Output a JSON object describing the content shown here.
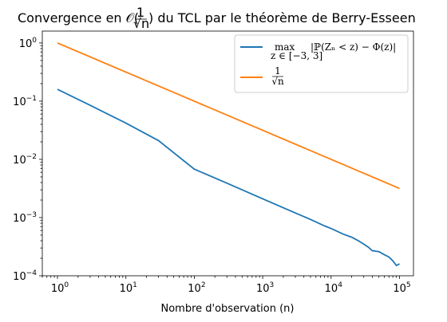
{
  "chart_data": {
    "type": "line",
    "title": "Convergence en 𝒪(1/√n) du TCL par le théorème de Berry-Esseen",
    "title_parts": {
      "prefix": "Convergence en 𝒪(",
      "frac_num": "1",
      "frac_den": "√n",
      "suffix": ") du TCL par le théorème de Berry-Esseen"
    },
    "xlabel": "Nombre d'observation (n)",
    "ylabel": "",
    "x_scale": "log",
    "y_scale": "log",
    "xlim": [
      0.6,
      160000
    ],
    "ylim": [
      0.0001,
      1.6
    ],
    "grid": false,
    "legend_position": "top-right",
    "x_ticks": [
      {
        "value": 1,
        "base": "10",
        "exp": "0"
      },
      {
        "value": 10,
        "base": "10",
        "exp": "1"
      },
      {
        "value": 100,
        "base": "10",
        "exp": "2"
      },
      {
        "value": 1000,
        "base": "10",
        "exp": "3"
      },
      {
        "value": 10000,
        "base": "10",
        "exp": "4"
      },
      {
        "value": 100000,
        "base": "10",
        "exp": "5"
      }
    ],
    "y_ticks": [
      {
        "value": 0.0001,
        "base": "10",
        "exp": "−4"
      },
      {
        "value": 0.001,
        "base": "10",
        "exp": "−3"
      },
      {
        "value": 0.01,
        "base": "10",
        "exp": "−2"
      },
      {
        "value": 0.1,
        "base": "10",
        "exp": "−1"
      },
      {
        "value": 1,
        "base": "10",
        "exp": "0"
      }
    ],
    "series": [
      {
        "name": "max_{z∈[−3,3]} |ℙ(Zₙ < z) − Φ(z)|",
        "legend_main": "max",
        "legend_sub": "z ∈ [−3, 3]",
        "legend_expr": "|ℙ(Zₙ < z) − Φ(z)|",
        "color": "#1f77b4",
        "x": [
          1,
          3,
          10,
          30,
          100,
          300,
          1000,
          3000,
          5000,
          8000,
          10000,
          15000,
          20000,
          25000,
          30000,
          35000,
          40000,
          50000,
          60000,
          70000,
          80000,
          90000,
          100000
        ],
        "values": [
          0.16,
          0.085,
          0.042,
          0.021,
          0.0068,
          0.0039,
          0.0021,
          0.0012,
          0.00093,
          0.00072,
          0.00065,
          0.00052,
          0.00046,
          0.0004,
          0.00035,
          0.00031,
          0.00027,
          0.00026,
          0.00023,
          0.00021,
          0.00018,
          0.00015,
          0.00016
        ]
      },
      {
        "name": "1/√n",
        "legend_num": "1",
        "legend_den": "√n",
        "color": "#ff7f0e",
        "x": [
          1,
          10,
          100,
          1000,
          10000,
          100000
        ],
        "values": [
          1,
          0.316227766,
          0.1,
          0.0316227766,
          0.01,
          0.00316227766
        ]
      }
    ]
  }
}
